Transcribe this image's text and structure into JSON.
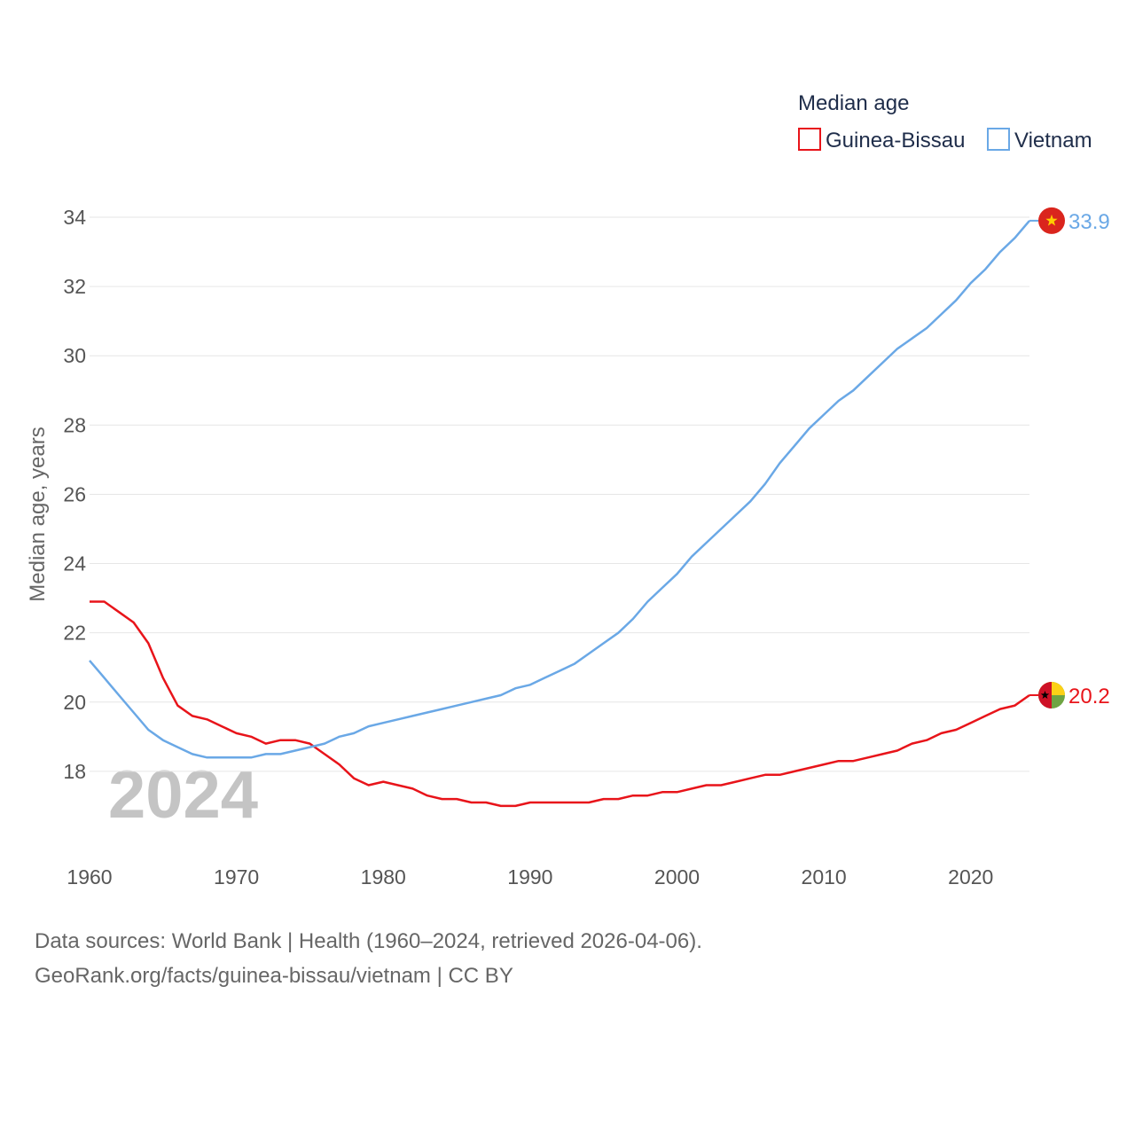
{
  "chart_data": {
    "type": "line",
    "legend_title": "Median age",
    "ylabel": "Median age, years",
    "xlabel": "",
    "year_label": "2024",
    "xlim": [
      1960,
      2024
    ],
    "ylim": [
      16,
      34
    ],
    "x_ticks": [
      1960,
      1970,
      1980,
      1990,
      2000,
      2010,
      2020
    ],
    "y_ticks": [
      18,
      20,
      22,
      24,
      26,
      28,
      30,
      32,
      34
    ],
    "legend_position": "top-right",
    "grid": true,
    "x": [
      1960,
      1961,
      1962,
      1963,
      1964,
      1965,
      1966,
      1967,
      1968,
      1969,
      1970,
      1971,
      1972,
      1973,
      1974,
      1975,
      1976,
      1977,
      1978,
      1979,
      1980,
      1981,
      1982,
      1983,
      1984,
      1985,
      1986,
      1987,
      1988,
      1989,
      1990,
      1991,
      1992,
      1993,
      1994,
      1995,
      1996,
      1997,
      1998,
      1999,
      2000,
      2001,
      2002,
      2003,
      2004,
      2005,
      2006,
      2007,
      2008,
      2009,
      2010,
      2011,
      2012,
      2013,
      2014,
      2015,
      2016,
      2017,
      2018,
      2019,
      2020,
      2021,
      2022,
      2023,
      2024
    ],
    "series": [
      {
        "name": "Guinea-Bissau",
        "color": "#e8141a",
        "end_label": "20.2",
        "values": [
          22.9,
          22.9,
          22.6,
          22.3,
          21.7,
          20.7,
          19.9,
          19.6,
          19.5,
          19.3,
          19.1,
          19.0,
          18.8,
          18.9,
          18.9,
          18.8,
          18.5,
          18.2,
          17.8,
          17.6,
          17.7,
          17.6,
          17.5,
          17.3,
          17.2,
          17.2,
          17.1,
          17.1,
          17.0,
          17.0,
          17.1,
          17.1,
          17.1,
          17.1,
          17.1,
          17.2,
          17.2,
          17.3,
          17.3,
          17.4,
          17.4,
          17.5,
          17.6,
          17.6,
          17.7,
          17.8,
          17.9,
          17.9,
          18.0,
          18.1,
          18.2,
          18.3,
          18.3,
          18.4,
          18.5,
          18.6,
          18.8,
          18.9,
          19.1,
          19.2,
          19.4,
          19.6,
          19.8,
          19.9,
          20.2
        ]
      },
      {
        "name": "Vietnam",
        "color": "#6aa8e6",
        "end_label": "33.9",
        "values": [
          21.2,
          20.7,
          20.2,
          19.7,
          19.2,
          18.9,
          18.7,
          18.5,
          18.4,
          18.4,
          18.4,
          18.4,
          18.5,
          18.5,
          18.6,
          18.7,
          18.8,
          19.0,
          19.1,
          19.3,
          19.4,
          19.5,
          19.6,
          19.7,
          19.8,
          19.9,
          20.0,
          20.1,
          20.2,
          20.4,
          20.5,
          20.7,
          20.9,
          21.1,
          21.4,
          21.7,
          22.0,
          22.4,
          22.9,
          23.3,
          23.7,
          24.2,
          24.6,
          25.0,
          25.4,
          25.8,
          26.3,
          26.9,
          27.4,
          27.9,
          28.3,
          28.7,
          29.0,
          29.4,
          29.8,
          30.2,
          30.5,
          30.8,
          31.2,
          31.6,
          32.1,
          32.5,
          33.0,
          33.4,
          33.9
        ]
      }
    ]
  },
  "flags": {
    "vietnam": {
      "red": "#da251d",
      "star": "#ffcd00"
    },
    "guinea_bissau": {
      "red": "#ce1126",
      "yellow": "#fcd116",
      "green": "#6ea442",
      "star": "#000000"
    }
  },
  "source": {
    "line1": "Data sources: World Bank | Health (1960–2024, retrieved 2026-04-06).",
    "line2": "GeoRank.org/facts/guinea-bissau/vietnam | CC BY"
  }
}
